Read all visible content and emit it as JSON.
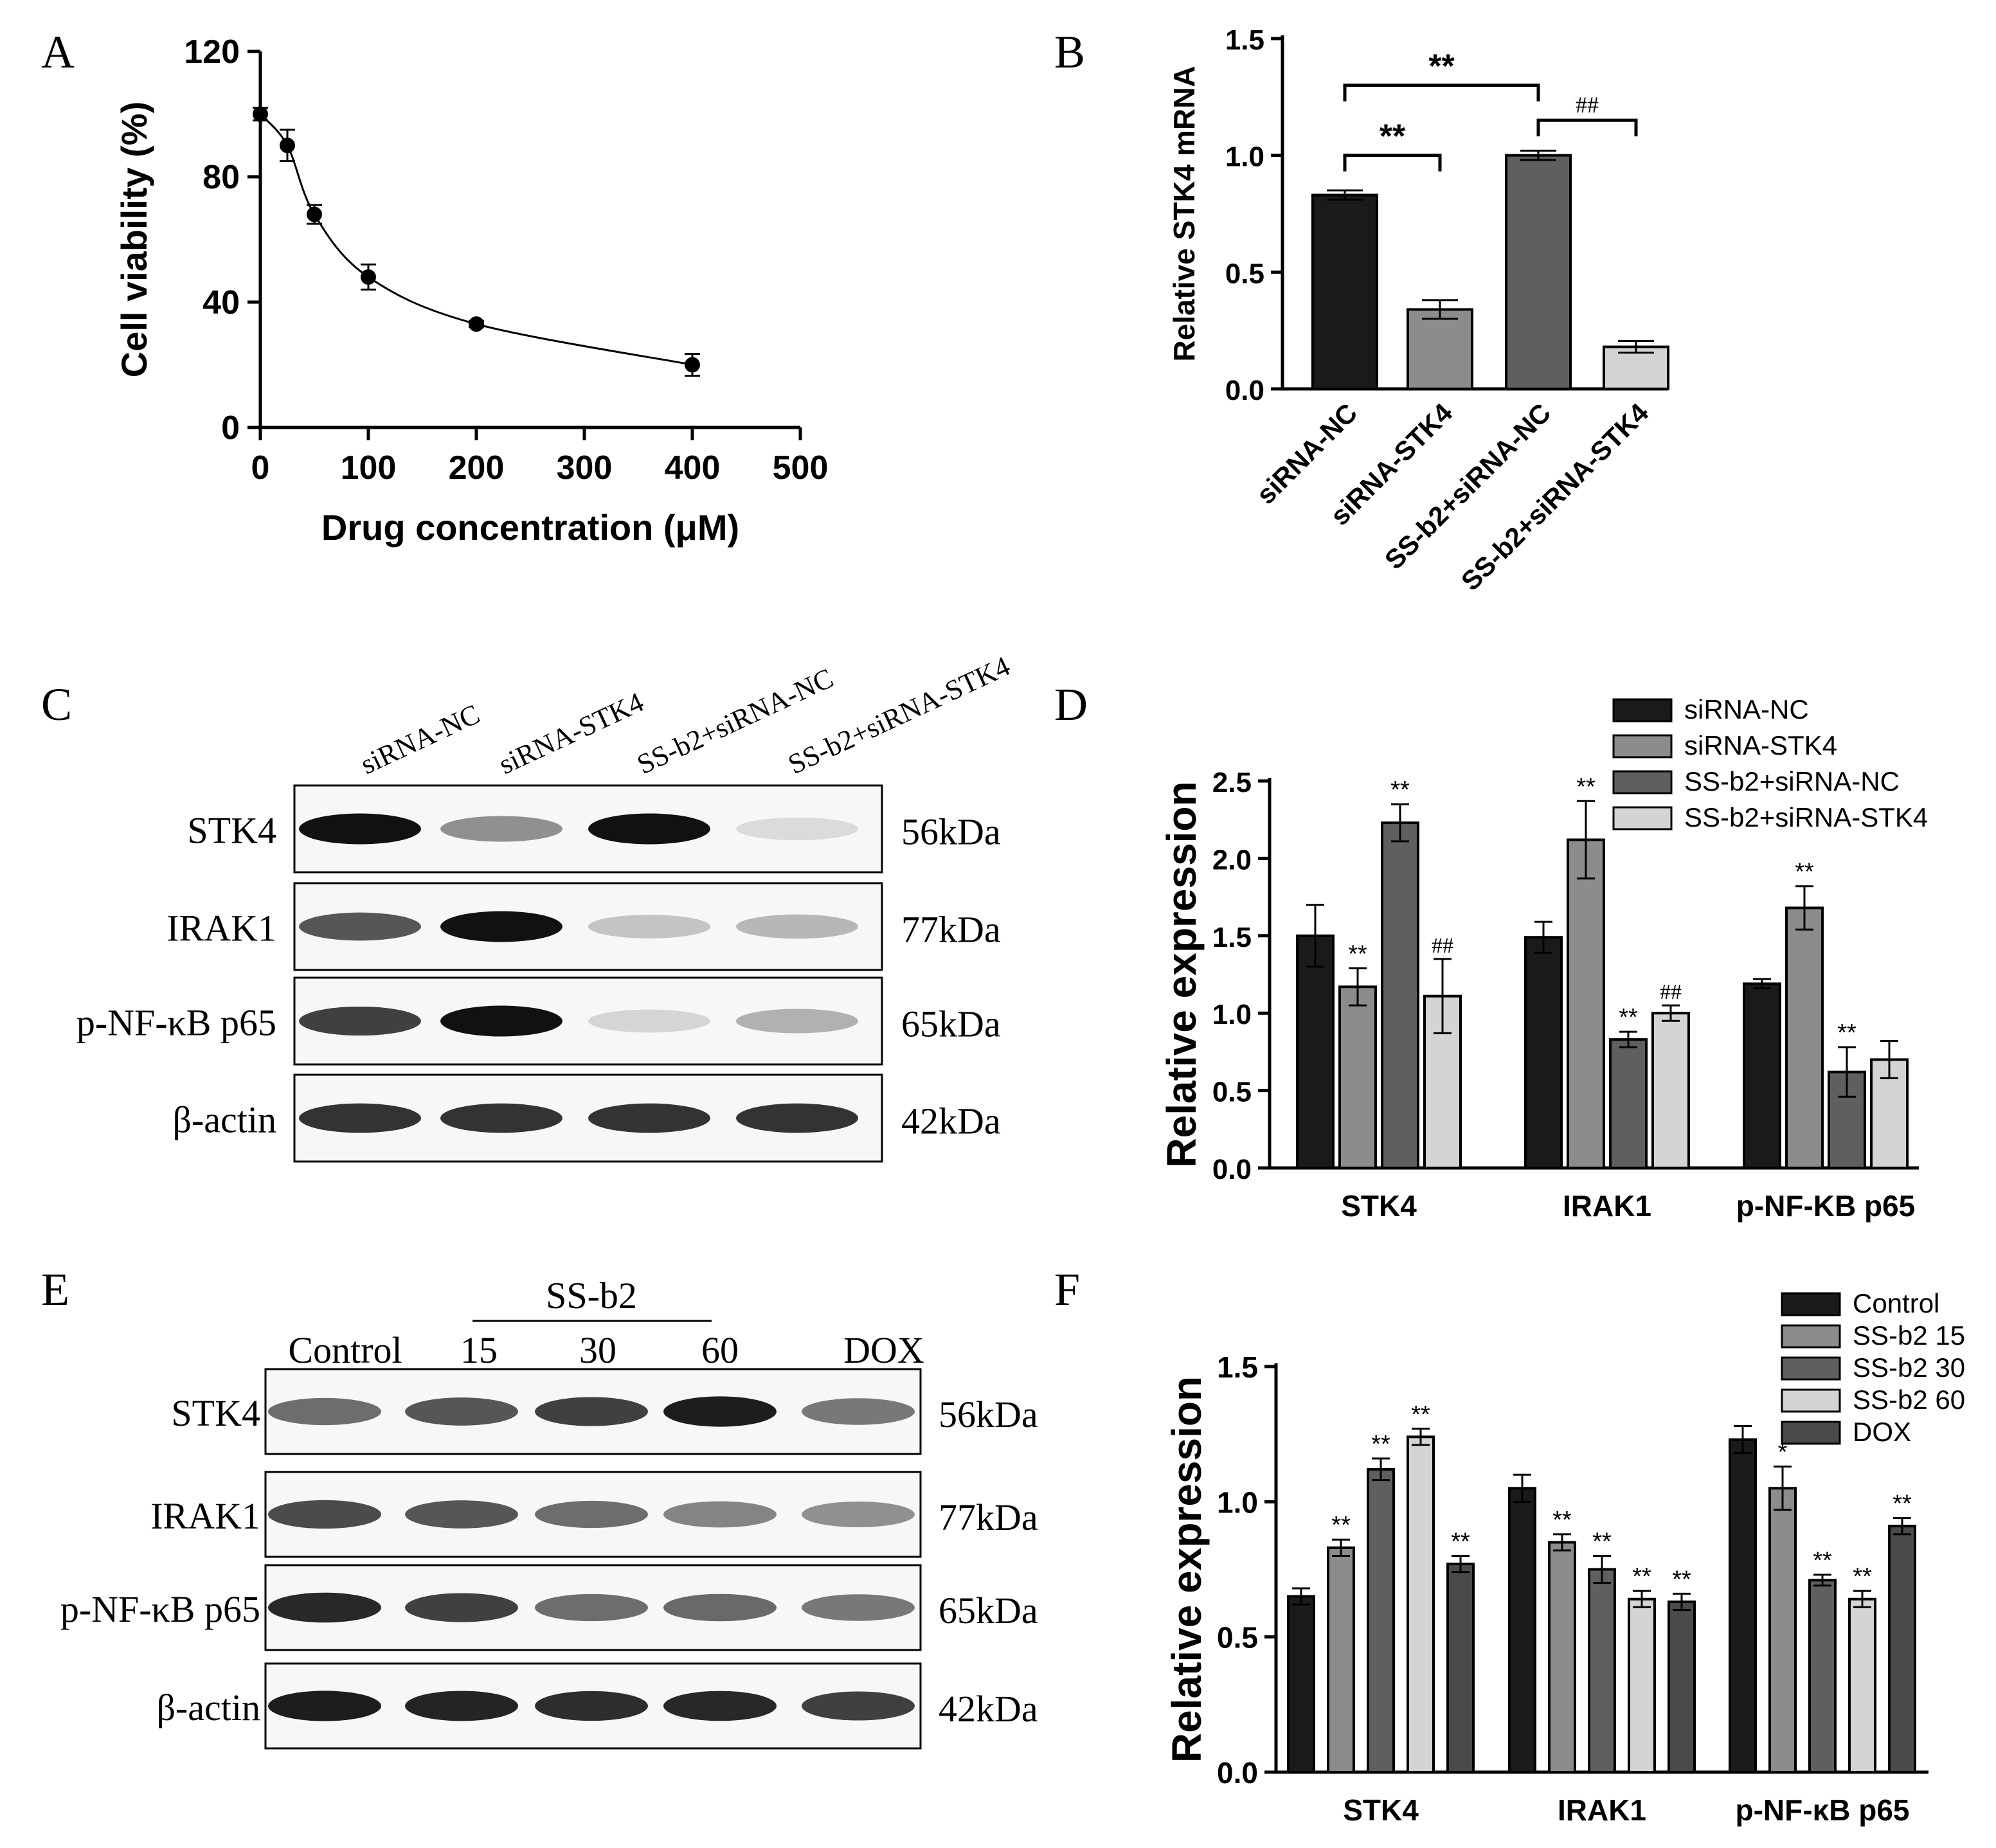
{
  "panel_letters": {
    "a": "A",
    "b": "B",
    "c": "C",
    "d": "D",
    "e": "E",
    "f": "F"
  },
  "colors": {
    "black": "#1a1a1a",
    "gray_mid": "#8c8c8c",
    "gray_dark": "#5f5f5f",
    "gray_light": "#d4d4d4",
    "gray_darker": "#4a4a4a"
  },
  "chart_data": [
    {
      "id": "A",
      "type": "line",
      "xlabel": "Drug concentration (μM)",
      "ylabel": "Cell viability (%)",
      "xlim": [
        0,
        500
      ],
      "ylim": [
        0,
        120
      ],
      "xticks": [
        "0",
        "100",
        "200",
        "300",
        "400",
        "500"
      ],
      "yticks": [
        "0",
        "40",
        "80",
        "120"
      ],
      "x": [
        0,
        25,
        50,
        100,
        200,
        400
      ],
      "y": [
        100,
        90,
        68,
        48,
        33,
        20
      ],
      "err": [
        2,
        5,
        3,
        4,
        1,
        3.5
      ],
      "grid": false
    },
    {
      "id": "B",
      "type": "bar",
      "ylabel": "Relative STK4 mRNA",
      "ylim": [
        0,
        1.5
      ],
      "yticks": [
        "0.0",
        "0.5",
        "1.0",
        "1.5"
      ],
      "categories": [
        "siRNA-NC",
        "siRNA-STK4",
        "SS-b2+siRNA-NC",
        "SS-b2+siRNA-STK4"
      ],
      "values": [
        0.83,
        0.34,
        1.0,
        0.18
      ],
      "err": [
        0.02,
        0.04,
        0.02,
        0.025
      ],
      "brackets": [
        {
          "from": 0,
          "to": 1,
          "label": "**",
          "level": 1.0
        },
        {
          "from": 0,
          "to": 2,
          "label": "**",
          "level": 1.3
        },
        {
          "from": 2,
          "to": 3,
          "label": "##",
          "level": 1.15
        }
      ],
      "grid": false
    },
    {
      "id": "D",
      "type": "bar",
      "ylabel": "Relative expression",
      "ylim": [
        0,
        2.5
      ],
      "yticks": [
        "0.0",
        "0.5",
        "1.0",
        "1.5",
        "2.0",
        "2.5"
      ],
      "categories": [
        "STK4",
        "IRAK1",
        "p-NF-KB p65"
      ],
      "legend_position": "top-right",
      "series": [
        {
          "name": "siRNA-NC",
          "values": [
            1.5,
            1.49,
            1.19
          ],
          "err": [
            0.2,
            0.1,
            0.03
          ],
          "marks": [
            "",
            "",
            ""
          ]
        },
        {
          "name": "siRNA-STK4",
          "values": [
            1.17,
            2.12,
            1.68
          ],
          "err": [
            0.12,
            0.25,
            0.14
          ],
          "marks": [
            "**",
            "**",
            "**"
          ]
        },
        {
          "name": "SS-b2+siRNA-NC",
          "values": [
            2.23,
            0.83,
            0.62
          ],
          "err": [
            0.12,
            0.05,
            0.16
          ],
          "marks": [
            "**",
            "**",
            "**"
          ]
        },
        {
          "name": "SS-b2+siRNA-STK4",
          "values": [
            1.11,
            1.0,
            0.7
          ],
          "err": [
            0.24,
            0.05,
            0.12
          ],
          "marks": [
            "##",
            "##",
            ""
          ]
        }
      ],
      "grid": false
    },
    {
      "id": "F",
      "type": "bar",
      "ylabel": "Relative expression",
      "ylim": [
        0,
        1.5
      ],
      "yticks": [
        "0.0",
        "0.5",
        "1.0",
        "1.5"
      ],
      "categories": [
        "STK4",
        "IRAK1",
        "p-NF-κB p65"
      ],
      "legend_position": "top-right",
      "series": [
        {
          "name": "Control",
          "values": [
            0.65,
            1.05,
            1.23
          ],
          "err": [
            0.03,
            0.05,
            0.05
          ],
          "marks": [
            "",
            "",
            ""
          ]
        },
        {
          "name": "SS-b2 15",
          "values": [
            0.83,
            0.85,
            1.05
          ],
          "err": [
            0.03,
            0.03,
            0.08
          ],
          "marks": [
            "**",
            "**",
            "*"
          ]
        },
        {
          "name": "SS-b2 30",
          "values": [
            1.12,
            0.75,
            0.71
          ],
          "err": [
            0.04,
            0.05,
            0.02
          ],
          "marks": [
            "**",
            "**",
            "**"
          ]
        },
        {
          "name": "SS-b2 60",
          "values": [
            1.24,
            0.64,
            0.64
          ],
          "err": [
            0.03,
            0.03,
            0.03
          ],
          "marks": [
            "**",
            "**",
            "**"
          ]
        },
        {
          "name": "DOX",
          "values": [
            0.77,
            0.63,
            0.91
          ],
          "err": [
            0.03,
            0.03,
            0.03
          ],
          "marks": [
            "**",
            "**",
            "**"
          ]
        }
      ],
      "grid": false
    }
  ],
  "blot_c": {
    "lanes": [
      "siRNA-NC",
      "siRNA-STK4",
      "SS-b2+siRNA-NC",
      "SS-b2+siRNA-STK4"
    ],
    "rows": [
      {
        "label": "STK4",
        "size": "56kDa",
        "intensity": [
          1.0,
          0.45,
          1.0,
          0.12
        ]
      },
      {
        "label": "IRAK1",
        "size": "77kDa",
        "intensity": [
          0.7,
          1.0,
          0.22,
          0.28
        ]
      },
      {
        "label": "p-NF-κB p65",
        "size": "65kDa",
        "intensity": [
          0.8,
          1.0,
          0.15,
          0.3
        ]
      },
      {
        "label": "β-actin",
        "size": "42kDa",
        "intensity": [
          0.85,
          0.85,
          0.85,
          0.85
        ]
      }
    ]
  },
  "blot_e": {
    "group_label": "SS-b2",
    "lanes": [
      "Control",
      "15",
      "30",
      "60",
      "DOX"
    ],
    "rows": [
      {
        "label": "STK4",
        "size": "56kDa",
        "intensity": [
          0.6,
          0.7,
          0.8,
          0.95,
          0.55
        ]
      },
      {
        "label": "IRAK1",
        "size": "77kDa",
        "intensity": [
          0.75,
          0.7,
          0.6,
          0.5,
          0.45
        ]
      },
      {
        "label": "p-NF-κB p65",
        "size": "65kDa",
        "intensity": [
          0.9,
          0.8,
          0.6,
          0.62,
          0.55
        ]
      },
      {
        "label": "β-actin",
        "size": "42kDa",
        "intensity": [
          0.95,
          0.92,
          0.88,
          0.9,
          0.8
        ]
      }
    ]
  }
}
